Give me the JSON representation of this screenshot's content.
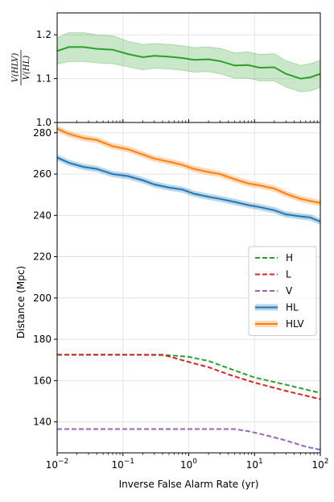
{
  "chart_data": [
    {
      "type": "line",
      "panel": "top",
      "ylabel_numerator": "V(HLV)",
      "ylabel_denominator": "V(HL)",
      "x_scale": "log",
      "xlim": [
        0.01,
        100
      ],
      "ylim": [
        1.0,
        1.25
      ],
      "yticks": [
        1.0,
        1.1,
        1.2
      ],
      "ytick_labels": [
        "1.0",
        "1.1",
        "1.2"
      ],
      "grid": true,
      "series": [
        {
          "color": "#2ca02c",
          "band": true,
          "x": [
            0.01,
            0.015,
            0.025,
            0.04,
            0.07,
            0.12,
            0.2,
            0.3,
            0.5,
            0.8,
            1.2,
            2.0,
            3.0,
            5.0,
            8.0,
            12,
            20,
            30,
            50,
            70,
            100
          ],
          "y": [
            1.163,
            1.172,
            1.172,
            1.168,
            1.166,
            1.156,
            1.149,
            1.152,
            1.15,
            1.147,
            1.143,
            1.144,
            1.14,
            1.13,
            1.131,
            1.125,
            1.126,
            1.111,
            1.1,
            1.103,
            1.111
          ],
          "y_low": [
            1.133,
            1.139,
            1.139,
            1.136,
            1.134,
            1.127,
            1.12,
            1.124,
            1.122,
            1.119,
            1.115,
            1.116,
            1.111,
            1.101,
            1.101,
            1.095,
            1.095,
            1.081,
            1.07,
            1.072,
            1.08
          ],
          "y_high": [
            1.193,
            1.205,
            1.205,
            1.2,
            1.198,
            1.185,
            1.178,
            1.18,
            1.178,
            1.175,
            1.171,
            1.172,
            1.169,
            1.159,
            1.161,
            1.155,
            1.157,
            1.141,
            1.13,
            1.134,
            1.142
          ]
        }
      ]
    },
    {
      "type": "line",
      "panel": "bottom",
      "xlabel": "Inverse False Alarm Rate (yr)",
      "ylabel": "Distance (Mpc)",
      "x_scale": "log",
      "xlim": [
        0.01,
        100
      ],
      "ylim": [
        125,
        285
      ],
      "xticks": [
        0.01,
        0.1,
        1,
        10,
        100
      ],
      "xtick_labels": [
        {
          "base": "10",
          "exp": "−2"
        },
        {
          "base": "10",
          "exp": "−1"
        },
        {
          "base": "10",
          "exp": "0"
        },
        {
          "base": "10",
          "exp": "1"
        },
        {
          "base": "10",
          "exp": "2"
        }
      ],
      "yticks": [
        140,
        160,
        180,
        200,
        220,
        240,
        260,
        280
      ],
      "ytick_labels": [
        "140",
        "160",
        "180",
        "200",
        "220",
        "240",
        "260",
        "280"
      ],
      "grid": true,
      "legend_position": "right",
      "series": [
        {
          "name": "H",
          "color": "#2ca02c",
          "style": "dashed",
          "x": [
            0.01,
            0.1,
            0.5,
            1.0,
            2.0,
            4.0,
            10,
            30,
            100
          ],
          "y": [
            172.5,
            172.5,
            172.3,
            171.5,
            169.5,
            166.0,
            161.5,
            158.0,
            154.0
          ]
        },
        {
          "name": "L",
          "color": "#d62728",
          "style": "dashed",
          "x": [
            0.01,
            0.1,
            0.4,
            0.6,
            1.0,
            2.0,
            4.0,
            10,
            30,
            100
          ],
          "y": [
            172.5,
            172.5,
            172.5,
            171.0,
            169.0,
            166.5,
            163.0,
            159.0,
            155.0,
            151.0
          ]
        },
        {
          "name": "V",
          "color": "#9467bd",
          "style": "dashed",
          "x": [
            0.01,
            0.1,
            1.0,
            5.0,
            8.0,
            15,
            30,
            60,
            100
          ],
          "y": [
            136.5,
            136.5,
            136.5,
            136.5,
            135.5,
            133.5,
            131.0,
            128.0,
            126.5
          ]
        },
        {
          "name": "HL",
          "color": "#1f77b4",
          "style": "solid",
          "band": true,
          "band_halfwidth": 1.5,
          "x": [
            0.01,
            0.015,
            0.025,
            0.04,
            0.07,
            0.12,
            0.2,
            0.3,
            0.5,
            0.8,
            1.2,
            2.0,
            3.0,
            5.0,
            8.0,
            12,
            20,
            30,
            50,
            70,
            100
          ],
          "y": [
            268.0,
            265.5,
            263.5,
            262.5,
            260.0,
            259.0,
            257.0,
            255.0,
            253.5,
            252.5,
            250.5,
            249.0,
            248.0,
            246.5,
            245.0,
            244.0,
            242.5,
            240.5,
            239.5,
            239.0,
            237.0
          ]
        },
        {
          "name": "HLV",
          "color": "#ff7f0e",
          "style": "solid",
          "band": true,
          "band_halfwidth": 1.5,
          "x": [
            0.01,
            0.015,
            0.025,
            0.04,
            0.07,
            0.12,
            0.2,
            0.3,
            0.5,
            0.8,
            1.2,
            2.0,
            3.0,
            5.0,
            8.0,
            12,
            20,
            30,
            50,
            70,
            100
          ],
          "y": [
            282.0,
            279.5,
            277.5,
            276.5,
            273.5,
            272.0,
            269.5,
            267.5,
            266.0,
            264.5,
            262.5,
            261.0,
            260.0,
            257.5,
            255.5,
            254.5,
            253.0,
            250.5,
            248.0,
            247.0,
            246.0
          ]
        }
      ]
    }
  ]
}
